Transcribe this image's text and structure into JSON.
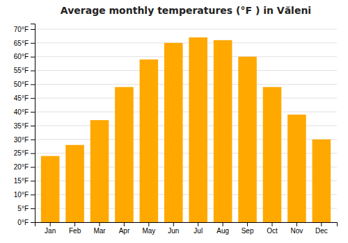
{
  "chart_data": {
    "type": "bar",
    "title": "Average monthly temperatures (°F ) in Văleni",
    "categories": [
      "Jan",
      "Feb",
      "Mar",
      "Apr",
      "May",
      "Jun",
      "Jul",
      "Aug",
      "Sep",
      "Oct",
      "Nov",
      "Dec"
    ],
    "values": [
      24,
      28,
      37,
      49,
      59,
      65,
      67,
      66,
      60,
      49,
      39,
      30
    ],
    "color": "#FFA800",
    "ylim": [
      0,
      72
    ],
    "yticks": [
      {
        "value": 0,
        "label": "0°F"
      },
      {
        "value": 5,
        "label": "5°F"
      },
      {
        "value": 10,
        "label": "10°F"
      },
      {
        "value": 15,
        "label": "15°F"
      },
      {
        "value": 20,
        "label": "20°F"
      },
      {
        "value": 25,
        "label": "25°F"
      },
      {
        "value": 30,
        "label": "30°F"
      },
      {
        "value": 35,
        "label": "35°F"
      },
      {
        "value": 40,
        "label": "40°F"
      },
      {
        "value": 45,
        "label": "45°F"
      },
      {
        "value": 50,
        "label": "50°F"
      },
      {
        "value": 55,
        "label": "55°F"
      },
      {
        "value": 60,
        "label": "60°F"
      },
      {
        "value": 65,
        "label": "65°F"
      },
      {
        "value": 70,
        "label": "70°F"
      }
    ],
    "grid": true
  }
}
